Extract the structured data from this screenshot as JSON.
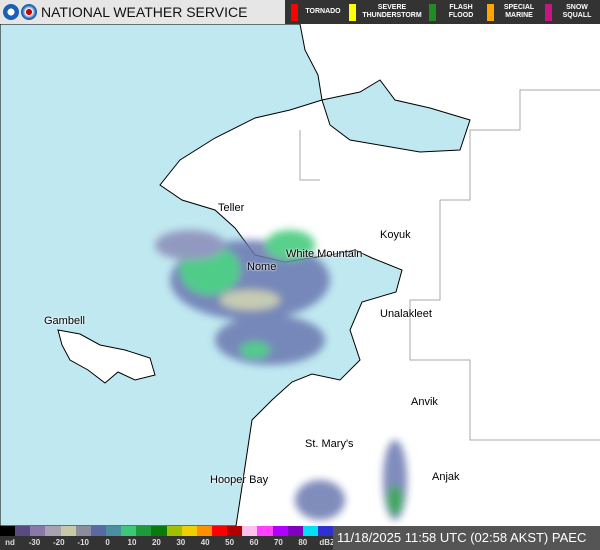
{
  "header": {
    "title": "NATIONAL WEATHER SERVICE"
  },
  "warnings_legend": [
    {
      "label": "TORNADO",
      "color": "#ff0000"
    },
    {
      "label": "SEVERE THUNDERSTORM",
      "color": "#ffff00"
    },
    {
      "label": "FLASH FLOOD",
      "color": "#228b22"
    },
    {
      "label": "SPECIAL MARINE",
      "color": "#ffa500"
    },
    {
      "label": "SNOW SQUALL",
      "color": "#c71585"
    }
  ],
  "reflectivity_scale": {
    "labels": [
      "nd",
      "-30",
      "-20",
      "-10",
      "0",
      "10",
      "20",
      "30",
      "40",
      "50",
      "60",
      "70",
      "80",
      "dBZ"
    ],
    "colors": [
      "#000000",
      "#5a4a80",
      "#8a78a8",
      "#a9a2b0",
      "#c8c8a8",
      "#8c8c9c",
      "#5a6aa0",
      "#4a90a0",
      "#3cc878",
      "#1e9a3c",
      "#0a7a0a",
      "#a0c000",
      "#f0d000",
      "#ff9000",
      "#ff0000",
      "#b00000",
      "#ffc0f0",
      "#ff40ff",
      "#b000ff",
      "#8000c0",
      "#00e0f0",
      "#3030d0"
    ]
  },
  "timestamp": "11/18/2025 11:58 UTC (02:58 AKST)",
  "station": "PAEC",
  "colors": {
    "sea": "#c0e8f0",
    "land": "#ffffff"
  },
  "places": [
    {
      "name": "Teller"
    },
    {
      "name": "Nome"
    },
    {
      "name": "White Mountain"
    },
    {
      "name": "Koyuk"
    },
    {
      "name": "Unalakleet"
    },
    {
      "name": "Gambell"
    },
    {
      "name": "Anvik"
    },
    {
      "name": "St. Mary's"
    },
    {
      "name": "Hooper Bay"
    },
    {
      "name": "Anjak"
    }
  ]
}
